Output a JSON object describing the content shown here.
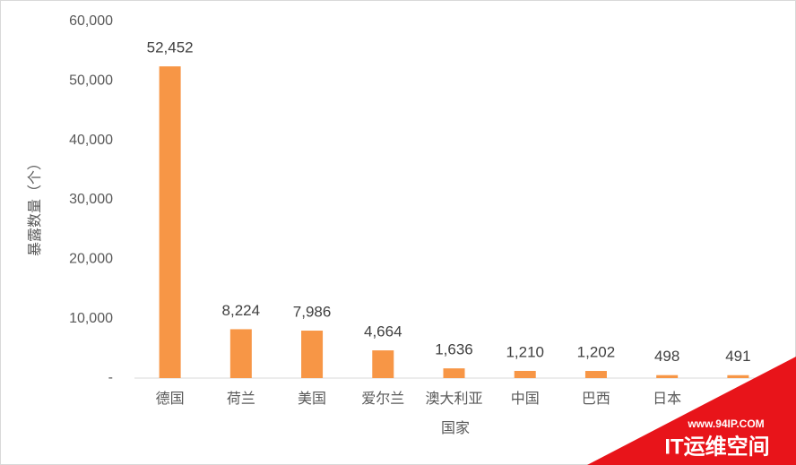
{
  "chart_data": {
    "type": "bar",
    "x_label": "国家",
    "y_label": "暴露数量（个）",
    "categories": [
      "德国",
      "荷兰",
      "美国",
      "爱尔兰",
      "澳大利亚",
      "中国",
      "巴西",
      "日本",
      null
    ],
    "values": [
      52452,
      8224,
      7986,
      4664,
      1636,
      1210,
      1202,
      498,
      491
    ],
    "value_labels": [
      "52,452",
      "8,224",
      "7,986",
      "4,664",
      "1,636",
      "1,210",
      "1,202",
      "498",
      "491"
    ],
    "color": "#f79646",
    "ylim": [
      0,
      60000
    ],
    "yticks": [
      {
        "value": 0,
        "label": "-"
      },
      {
        "value": 10000,
        "label": "10,000"
      },
      {
        "value": 20000,
        "label": "20,000"
      },
      {
        "value": 30000,
        "label": "30,000"
      },
      {
        "value": 40000,
        "label": "40,000"
      },
      {
        "value": 50000,
        "label": "50,000"
      },
      {
        "value": 60000,
        "label": "60,000"
      }
    ],
    "grid": false,
    "watermark": {
      "url": "www.94IP.COM",
      "text": "IT运维空间"
    }
  }
}
